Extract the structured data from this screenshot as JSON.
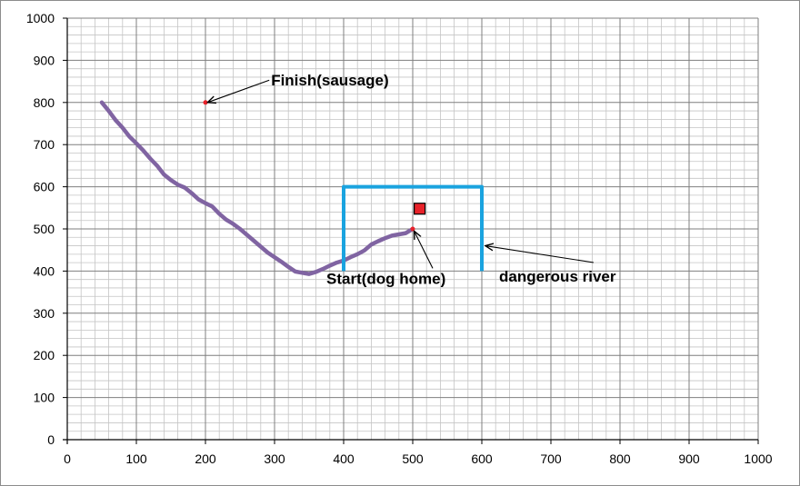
{
  "chart_data": {
    "type": "line",
    "title": "",
    "xlabel": "",
    "ylabel": "",
    "xlim": [
      0,
      1000
    ],
    "ylim": [
      0,
      1000
    ],
    "x_major_step": 100,
    "y_major_step": 100,
    "x_minor_step": 20,
    "y_minor_step": 20,
    "grid": true,
    "legend": "none",
    "x_ticks": [
      "0",
      "100",
      "200",
      "300",
      "400",
      "500",
      "600",
      "700",
      "800",
      "900",
      "1000"
    ],
    "y_ticks": [
      "0",
      "100",
      "200",
      "300",
      "400",
      "500",
      "600",
      "700",
      "800",
      "900",
      "1000"
    ],
    "series": [
      {
        "color": "#8064a2",
        "points": [
          [
            500,
            500
          ],
          [
            490,
            490
          ],
          [
            480,
            487
          ],
          [
            470,
            484
          ],
          [
            460,
            478
          ],
          [
            450,
            471
          ],
          [
            440,
            463
          ],
          [
            430,
            449
          ],
          [
            420,
            440
          ],
          [
            410,
            433
          ],
          [
            400,
            425
          ],
          [
            390,
            420
          ],
          [
            380,
            413
          ],
          [
            370,
            405
          ],
          [
            360,
            398
          ],
          [
            350,
            393
          ],
          [
            340,
            396
          ],
          [
            330,
            399
          ],
          [
            320,
            410
          ],
          [
            310,
            422
          ],
          [
            300,
            433
          ],
          [
            290,
            444
          ],
          [
            280,
            458
          ],
          [
            270,
            472
          ],
          [
            260,
            486
          ],
          [
            250,
            500
          ],
          [
            240,
            512
          ],
          [
            230,
            522
          ],
          [
            220,
            536
          ],
          [
            210,
            553
          ],
          [
            200,
            561
          ],
          [
            190,
            570
          ],
          [
            180,
            585
          ],
          [
            170,
            598
          ],
          [
            160,
            605
          ],
          [
            150,
            616
          ],
          [
            140,
            629
          ],
          [
            130,
            650
          ],
          [
            120,
            667
          ],
          [
            110,
            686
          ],
          [
            100,
            703
          ],
          [
            90,
            719
          ],
          [
            80,
            740
          ],
          [
            70,
            758
          ],
          [
            60,
            780
          ],
          [
            50,
            800
          ]
        ]
      },
      {
        "color": "#1aa3df",
        "points": [
          [
            400,
            400
          ],
          [
            400,
            600
          ],
          [
            600,
            600
          ],
          [
            600,
            400
          ]
        ]
      }
    ],
    "markers": [
      {
        "shape": "square",
        "color": "#e8222a",
        "x": 510,
        "y": 548
      },
      {
        "shape": "dot",
        "color": "#e8222a",
        "x": 200,
        "y": 800
      },
      {
        "shape": "dot",
        "color": "#e8222a",
        "x": 500,
        "y": 500
      }
    ],
    "annotations": [
      {
        "text": "Finish(sausage)",
        "text_x": 295,
        "text_y": 840,
        "arrow_to_x": 203,
        "arrow_to_y": 800
      },
      {
        "text": "Start(dog home)",
        "text_x": 375,
        "text_y": 370,
        "arrow_to_x": 502,
        "arrow_to_y": 495
      },
      {
        "text": "dangerous river",
        "text_x": 625,
        "text_y": 375,
        "arrow_to_x": 605,
        "arrow_to_y": 460
      }
    ]
  }
}
